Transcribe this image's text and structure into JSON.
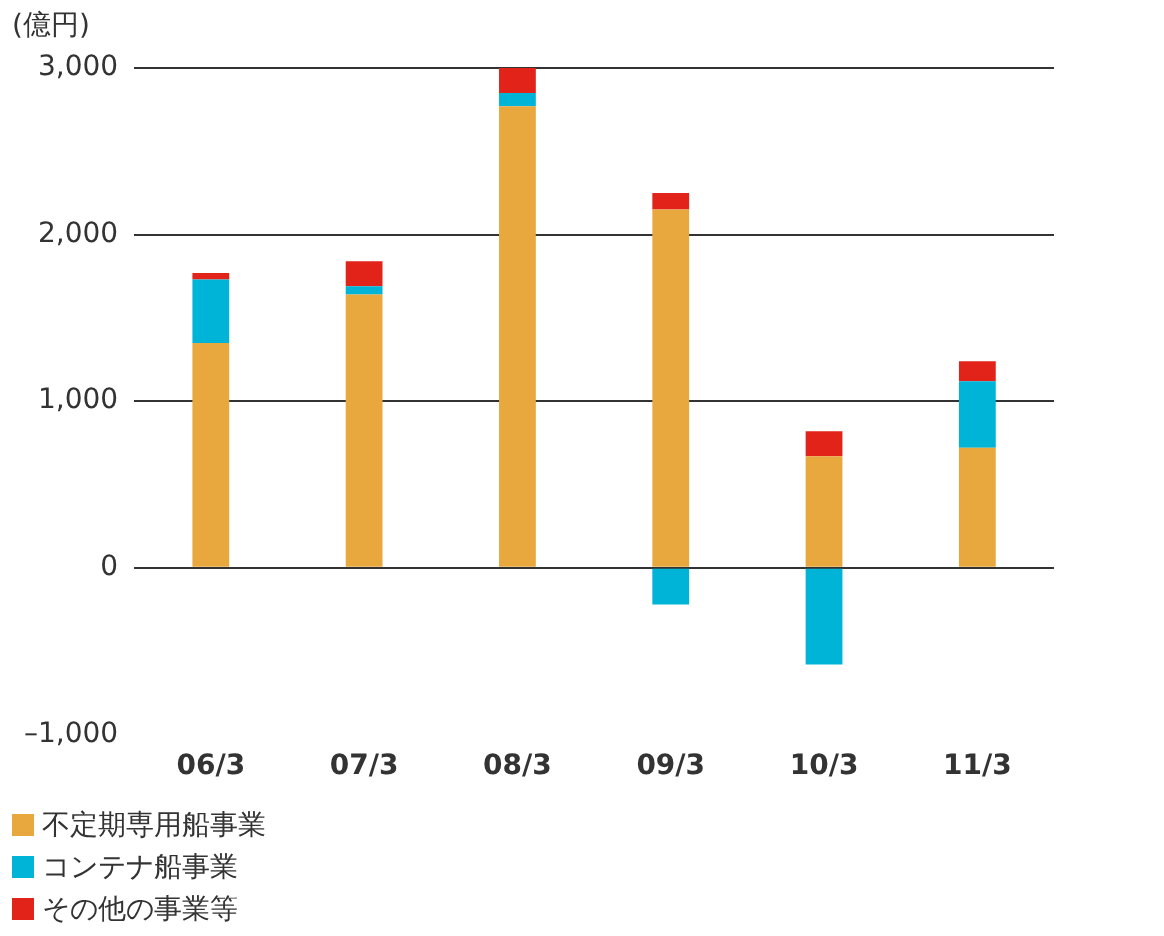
{
  "chart_data": {
    "type": "bar",
    "stacked": true,
    "ylabel": "(億円)",
    "categories": [
      "06/3",
      "07/3",
      "08/3",
      "09/3",
      "10/3",
      "11/3"
    ],
    "series": [
      {
        "name": "不定期専用船事業",
        "color": "#e8a83e",
        "values": [
          1350,
          1640,
          2770,
          2150,
          670,
          720
        ]
      },
      {
        "name": "コンテナ船事業",
        "color": "#00b4d8",
        "values": [
          380,
          50,
          80,
          -220,
          -580,
          400
        ]
      },
      {
        "name": "その他の事業等",
        "color": "#e2231a",
        "values": [
          40,
          150,
          150,
          100,
          150,
          120
        ]
      }
    ],
    "ylim": [
      -1000,
      3000
    ],
    "yticks": [
      {
        "value": -1000,
        "label": "–1,000"
      },
      {
        "value": 0,
        "label": "0"
      },
      {
        "value": 1000,
        "label": "1,000"
      },
      {
        "value": 2000,
        "label": "2,000"
      },
      {
        "value": 3000,
        "label": "3,000"
      }
    ],
    "grid": "y",
    "legend": "bottom"
  }
}
